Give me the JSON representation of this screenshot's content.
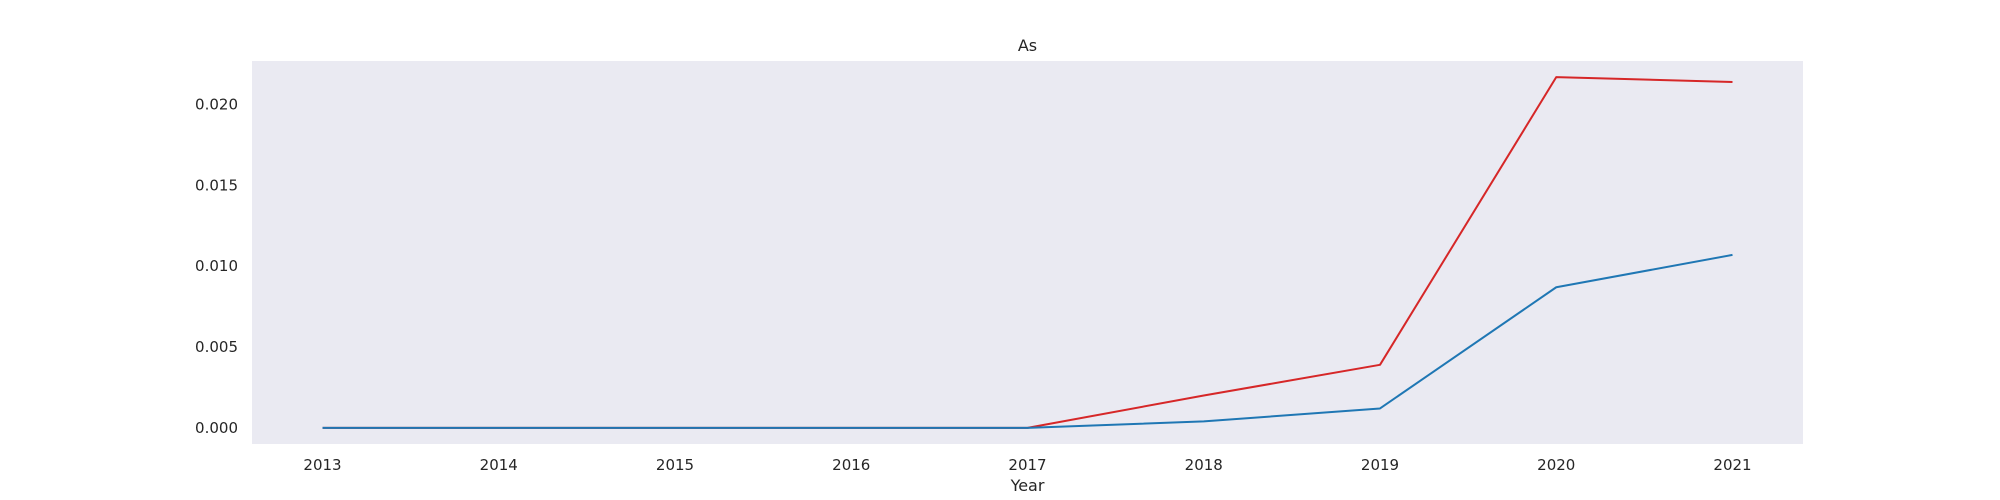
{
  "chart_data": {
    "type": "line",
    "title": "As",
    "xlabel": "Year",
    "ylabel": "",
    "x": [
      2013,
      2014,
      2015,
      2016,
      2017,
      2018,
      2019,
      2020,
      2021
    ],
    "x_ticks": [
      "2013",
      "2014",
      "2015",
      "2016",
      "2017",
      "2018",
      "2019",
      "2020",
      "2021"
    ],
    "y_ticks": [
      "0.000",
      "0.005",
      "0.010",
      "0.015",
      "0.020"
    ],
    "y_tick_values": [
      0.0,
      0.005,
      0.01,
      0.015,
      0.02
    ],
    "ylim": [
      -0.001,
      0.0227
    ],
    "xlim": [
      2012.6,
      2021.4
    ],
    "grid": false,
    "background_color": "#eaeaf2",
    "series": [
      {
        "color": "#d62728",
        "values": [
          0,
          0,
          0,
          0,
          0,
          0.002,
          0.0039,
          0.0217,
          0.0214
        ]
      },
      {
        "color": "#1f77b4",
        "values": [
          0,
          0,
          0,
          0,
          0,
          0.0004,
          0.0012,
          0.0087,
          0.0107
        ]
      }
    ]
  }
}
